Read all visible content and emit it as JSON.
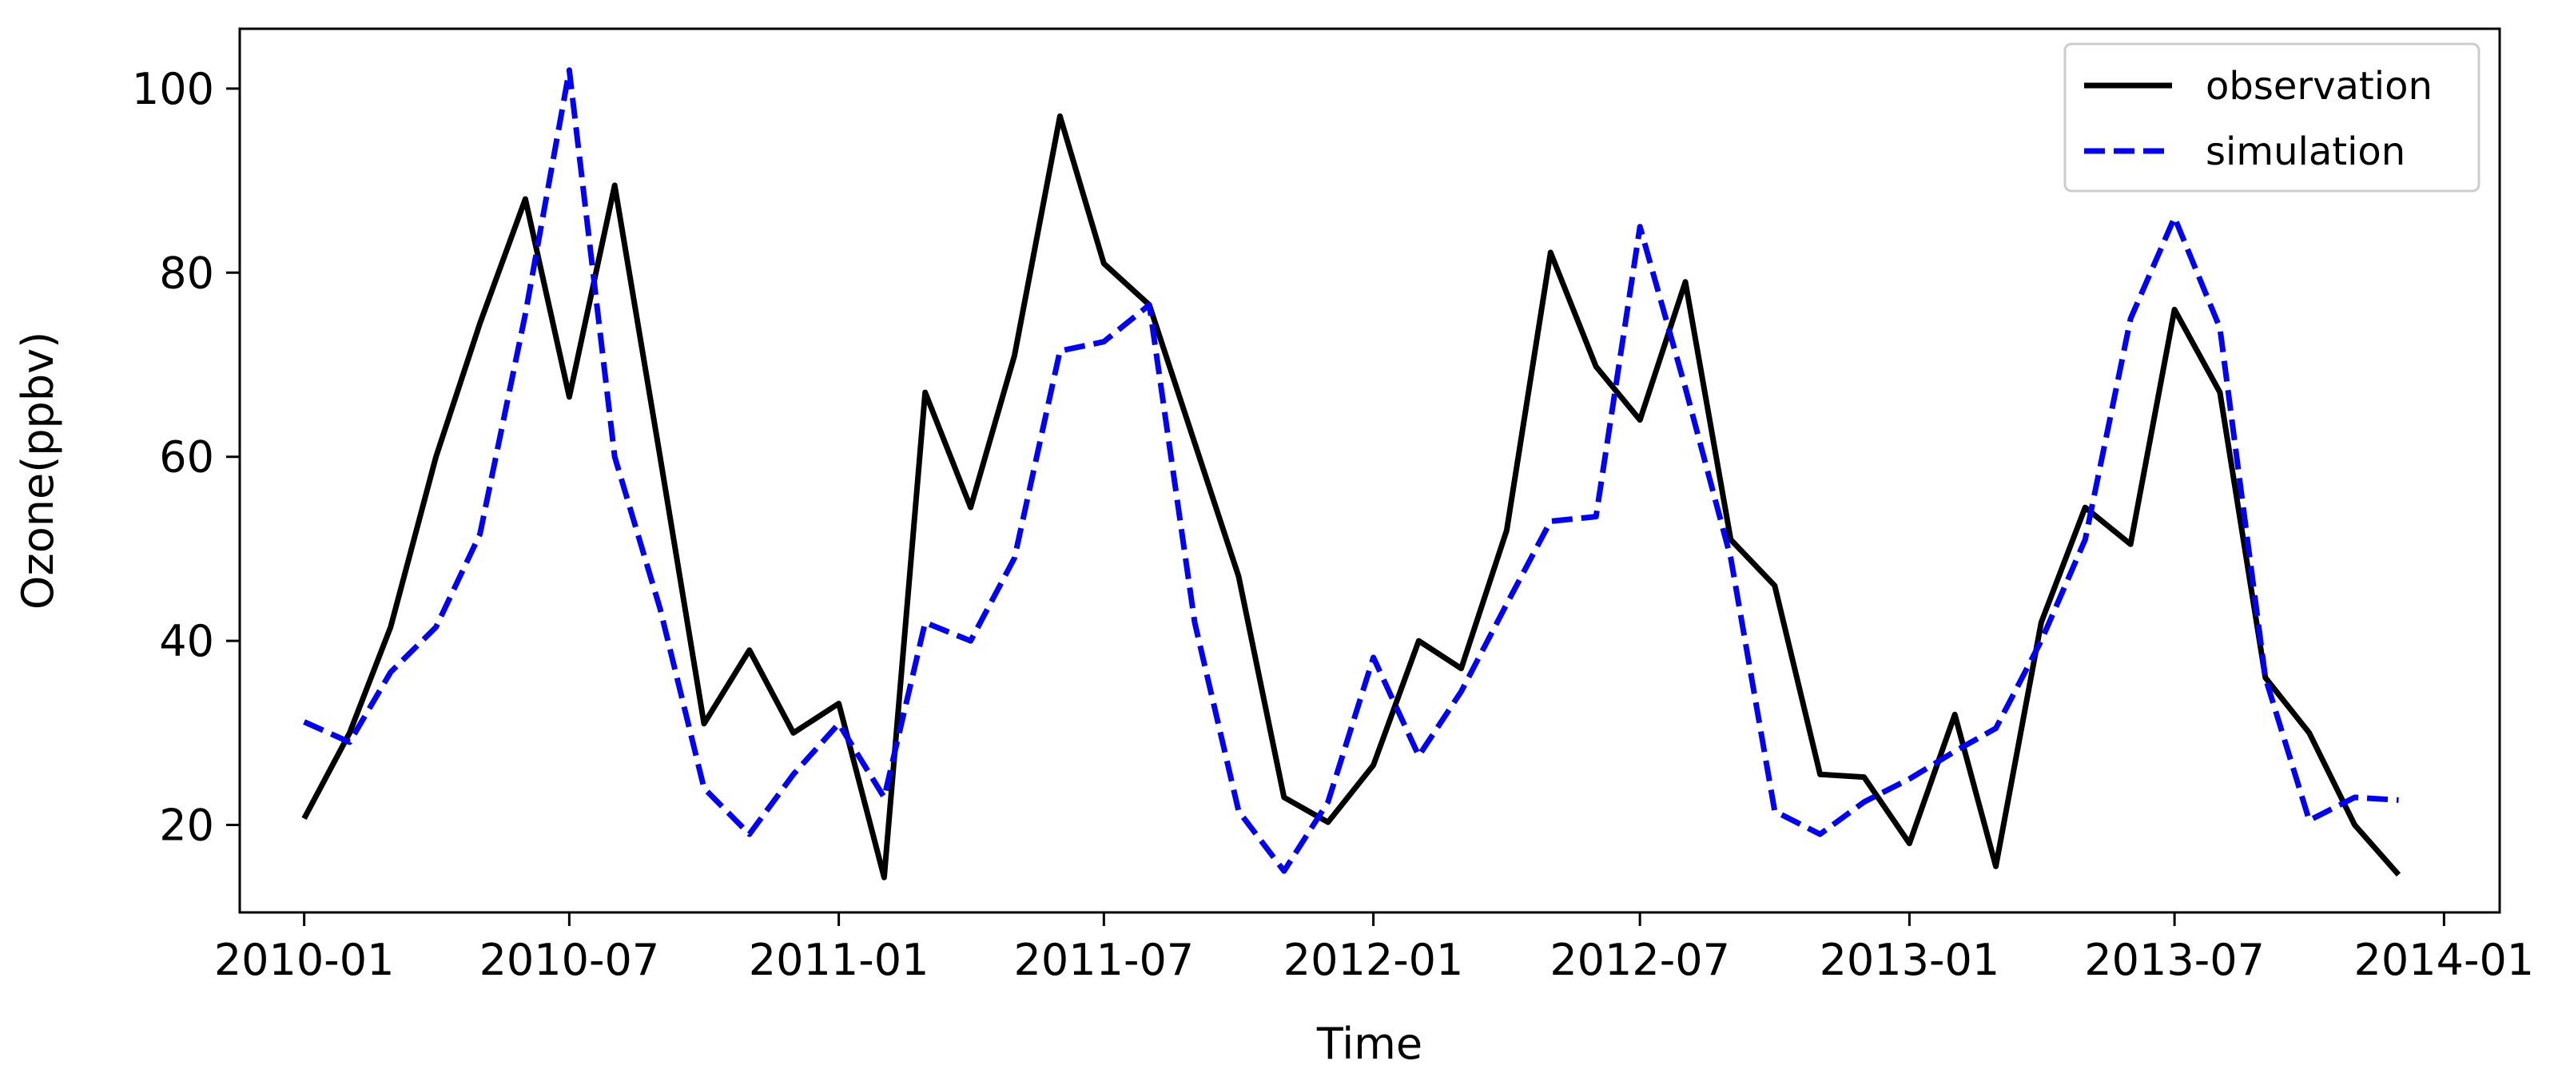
{
  "chart_data": {
    "type": "line",
    "title": "",
    "xlabel": "Time",
    "ylabel": "Ozone(ppbv)",
    "x_type": "date",
    "xlim": [
      "2009-11-18",
      "2014-02-08"
    ],
    "ylim": [
      10.5,
      106.5
    ],
    "x_ticks": [
      "2010-01",
      "2010-07",
      "2011-01",
      "2011-07",
      "2012-01",
      "2012-07",
      "2013-01",
      "2013-07",
      "2014-01"
    ],
    "y_ticks": [
      20,
      40,
      60,
      80,
      100
    ],
    "grid": false,
    "legend_position": "top-right",
    "x": [
      "2010-01",
      "2010-02",
      "2010-03",
      "2010-04",
      "2010-05",
      "2010-06",
      "2010-07",
      "2010-08",
      "2010-09",
      "2010-10",
      "2010-11",
      "2010-12",
      "2011-01",
      "2011-02",
      "2011-03",
      "2011-04",
      "2011-05",
      "2011-06",
      "2011-07",
      "2011-08",
      "2011-09",
      "2011-10",
      "2011-11",
      "2011-12",
      "2012-01",
      "2012-02",
      "2012-03",
      "2012-04",
      "2012-05",
      "2012-06",
      "2012-07",
      "2012-08",
      "2012-09",
      "2012-10",
      "2012-11",
      "2012-12",
      "2013-01",
      "2013-02",
      "2013-03",
      "2013-04",
      "2013-05",
      "2013-06",
      "2013-07",
      "2013-08",
      "2013-09",
      "2013-10",
      "2013-11",
      "2013-12"
    ],
    "series": [
      {
        "name": "observation",
        "color": "#000000",
        "style": "solid",
        "values": [
          20.7,
          30,
          41.5,
          60,
          74.5,
          88,
          66.5,
          89.5,
          60,
          31,
          39,
          30,
          33.2,
          14.3,
          67,
          54.5,
          71,
          97,
          81,
          76.5,
          61.5,
          47,
          23,
          20.3,
          26.5,
          40,
          37,
          52,
          82.2,
          69.8,
          64,
          79,
          51,
          46,
          25.5,
          25.2,
          18,
          32,
          15.5,
          42,
          54.5,
          50.5,
          76,
          67,
          36,
          30,
          20,
          14.6
        ]
      },
      {
        "name": "simulation",
        "color": "#0000ff",
        "style": "dashed",
        "values": [
          31.2,
          29,
          36.6,
          41.5,
          51.6,
          75.5,
          102,
          60,
          43.5,
          24,
          19,
          25.5,
          31,
          23,
          42,
          40,
          49,
          71.5,
          72.5,
          76.5,
          42,
          21.5,
          15,
          22.5,
          38.2,
          27.5,
          34.5,
          44,
          53,
          53.5,
          85,
          67.5,
          49,
          21.5,
          19,
          22.5,
          25,
          28,
          30.5,
          40,
          51,
          75,
          86,
          74,
          36,
          20.5,
          23,
          22.7
        ]
      }
    ]
  }
}
